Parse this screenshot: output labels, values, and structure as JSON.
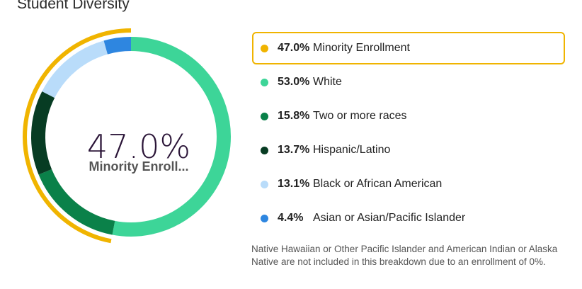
{
  "title": "Student Diversity",
  "center": {
    "value": "47.0%",
    "label": "Minority Enroll..."
  },
  "chart_data": {
    "type": "pie",
    "style": "donut",
    "slices": [
      {
        "label": "White",
        "value": 53.0,
        "display": "53.0%",
        "color": "#3dd598"
      },
      {
        "label": "Two or more races",
        "value": 15.8,
        "display": "15.8%",
        "color": "#0a8149"
      },
      {
        "label": "Hispanic/Latino",
        "value": 13.7,
        "display": "13.7%",
        "color": "#073c23"
      },
      {
        "label": "Black or African American",
        "value": 13.1,
        "display": "13.1%",
        "color": "#b9dcfa"
      },
      {
        "label": "Asian or Asian/Pacific Islander",
        "value": 4.4,
        "display": "4.4%",
        "color": "#2e86e0"
      }
    ],
    "highlight": {
      "label": "Minority Enrollment",
      "value": 47.0,
      "display": "47.0%",
      "color": "#f0b400"
    }
  },
  "legend": [
    {
      "pct": "47.0%",
      "label": "Minority Enrollment",
      "color": "#f0b400",
      "highlight": true
    },
    {
      "pct": "53.0%",
      "label": "White",
      "color": "#3dd598",
      "highlight": false
    },
    {
      "pct": "15.8%",
      "label": "Two or more races",
      "color": "#0a8149",
      "highlight": false
    },
    {
      "pct": "13.7%",
      "label": "Hispanic/Latino",
      "color": "#073c23",
      "highlight": false
    },
    {
      "pct": "13.1%",
      "label": "Black or African American",
      "color": "#b9dcfa",
      "highlight": false
    },
    {
      "pct": "4.4%",
      "label": "Asian or Asian/Pacific Islander",
      "color": "#2e86e0",
      "highlight": false
    }
  ],
  "footnote": "Native Hawaiian or Other Pacific Islander and American Indian or Alaska Native are not included in this breakdown due to an enrollment of 0%."
}
